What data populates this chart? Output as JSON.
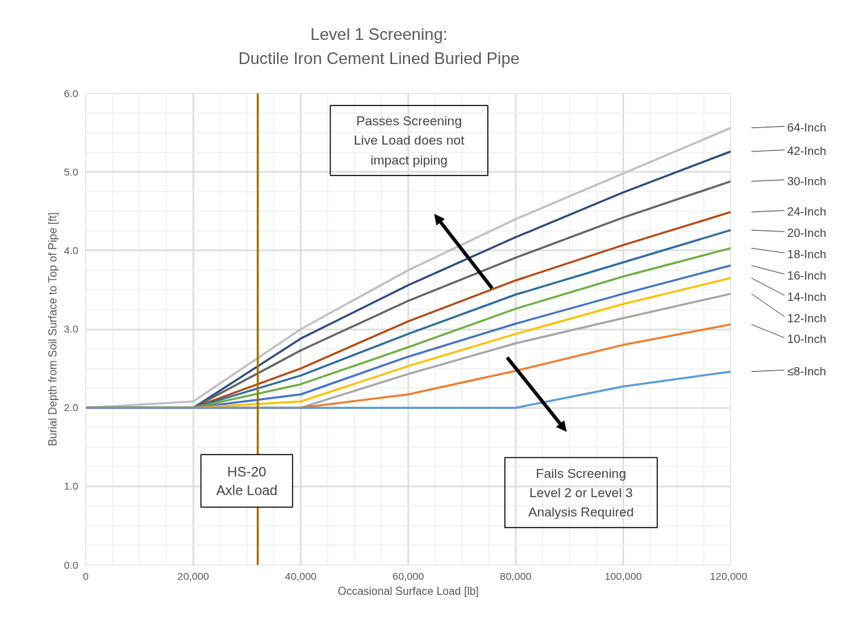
{
  "chart_data": {
    "type": "line",
    "title": "Level 1 Screening:\nDuctile Iron Cement Lined Buried Pipe",
    "xlabel": "Occasional Surface Load [lb]",
    "ylabel": "Burial Depth from Soil Surface to Top of Pipe [ft]",
    "x": [
      0,
      20000,
      40000,
      60000,
      80000,
      100000,
      120000
    ],
    "series": [
      {
        "name": "64-Inch",
        "color": "#bfbfbf",
        "values": [
          2.0,
          2.08,
          3.0,
          3.75,
          4.4,
          4.98,
          5.56
        ]
      },
      {
        "name": "42-Inch",
        "color": "#2f4b7c",
        "values": [
          2.0,
          2.0,
          2.88,
          3.56,
          4.17,
          4.74,
          5.26
        ]
      },
      {
        "name": "30-Inch",
        "color": "#636363",
        "values": [
          2.0,
          2.0,
          2.73,
          3.36,
          3.91,
          4.42,
          4.88
        ]
      },
      {
        "name": "24-Inch",
        "color": "#b04a14",
        "values": [
          2.0,
          2.0,
          2.5,
          3.1,
          3.62,
          4.07,
          4.49
        ]
      },
      {
        "name": "20-Inch",
        "color": "#2e6b9e",
        "values": [
          2.0,
          2.0,
          2.41,
          2.94,
          3.44,
          3.85,
          4.26
        ]
      },
      {
        "name": "18-Inch",
        "color": "#70ad47",
        "values": [
          2.0,
          2.0,
          2.3,
          2.77,
          3.26,
          3.67,
          4.03
        ]
      },
      {
        "name": "16-Inch",
        "color": "#4472c4",
        "values": [
          2.0,
          2.0,
          2.17,
          2.65,
          3.07,
          3.45,
          3.81
        ]
      },
      {
        "name": "14-Inch",
        "color": "#ffc000",
        "values": [
          2.0,
          2.0,
          2.08,
          2.53,
          2.94,
          3.32,
          3.65
        ]
      },
      {
        "name": "12-Inch",
        "color": "#a5a5a5",
        "values": [
          2.0,
          2.0,
          2.0,
          2.43,
          2.82,
          3.14,
          3.45
        ]
      },
      {
        "name": "10-Inch",
        "color": "#ed7d31",
        "values": [
          2.0,
          2.0,
          2.0,
          2.17,
          2.47,
          2.8,
          3.06
        ]
      },
      {
        "name": "≤8-Inch",
        "color": "#5b9bd5",
        "values": [
          2.0,
          2.0,
          2.0,
          2.0,
          2.0,
          2.27,
          2.46
        ]
      }
    ],
    "xlim": [
      0,
      120000
    ],
    "ylim": [
      0,
      6
    ],
    "xticks": [
      0,
      {
        "value": 20000,
        "label": "20,000"
      },
      {
        "value": 40000,
        "label": "40,000"
      },
      {
        "value": 60000,
        "label": "60,000"
      },
      {
        "value": 80000,
        "label": "80,000"
      },
      {
        "value": 100000,
        "label": "100,000"
      },
      {
        "value": 120000,
        "label": "120,000"
      }
    ],
    "yticks": [
      {
        "value": 0,
        "label": "0.0"
      },
      {
        "value": 1,
        "label": "1.0"
      },
      {
        "value": 2,
        "label": "2.0"
      },
      {
        "value": 3,
        "label": "3.0"
      },
      {
        "value": 4,
        "label": "4.0"
      },
      {
        "value": 5,
        "label": "5.0"
      },
      {
        "value": 6,
        "label": "6.0"
      }
    ],
    "ref_lines": [
      {
        "axis": "x",
        "value": 32000,
        "label": "HS-20 Axle Load",
        "color": "#9c7400"
      }
    ],
    "annotations": [
      "Passes Screening",
      "Live Load does not impact piping",
      "Fails Screening",
      "Level 2 or Level 3 Analysis Required"
    ],
    "grid": true,
    "marker": "none",
    "line_style": "solid"
  }
}
